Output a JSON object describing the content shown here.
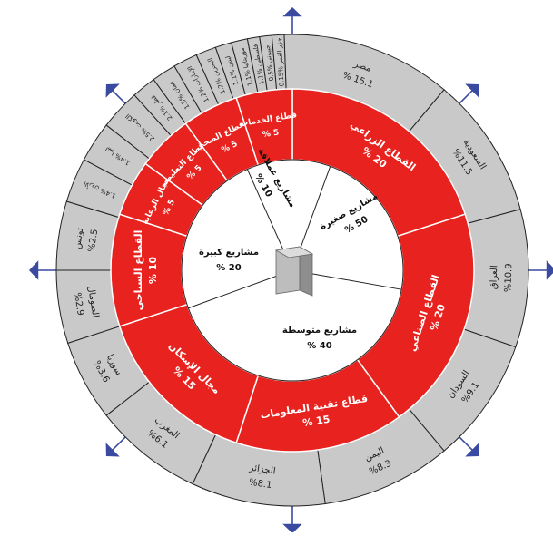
{
  "colors": {
    "outer_fill": "#c9c9c9",
    "sector_fill": "#e8231f",
    "inner_fill": "#ffffff",
    "stroke": "#222222",
    "arrow": "#3a4aa0",
    "box_face": "#bdbdbd",
    "box_side": "#8e8e8e",
    "box_top": "#dcdcdc"
  },
  "center_icon": "document-stack-icon",
  "inner_categories": [
    {
      "label": "مشاريع صغيرة",
      "value": "% 50",
      "share": 50
    },
    {
      "label": "مشاريع متوسطة",
      "value": "% 40",
      "share": 40
    },
    {
      "label": "مشاريع كبيرة",
      "value": "% 20",
      "share": 20
    },
    {
      "label": "مشاريع عملاقة",
      "value": "% 10",
      "share": 10
    }
  ],
  "sectors": [
    {
      "label": "القطاع الزراعي",
      "value": "% 20"
    },
    {
      "label": "القطاع الصناعي",
      "value": "% 20"
    },
    {
      "label": "قطاع تقنية المعلومات",
      "value": "% 15"
    },
    {
      "label": "مجال الإسكان",
      "value": "% 15"
    },
    {
      "label": "القطاع السياحي",
      "value": "% 10"
    },
    {
      "label": "مجال الرعاية",
      "value": "% 5"
    },
    {
      "label": "القطاع التعليمي",
      "value": "% 5"
    },
    {
      "label": "القطاع الصحي",
      "value": "% 5"
    },
    {
      "label": "قطاع الخدمات",
      "value": "% 5"
    }
  ],
  "countries": [
    {
      "label": "مصر",
      "value": "% 15.1"
    },
    {
      "label": "السعودية",
      "value": "%11.5"
    },
    {
      "label": "العراق",
      "value": "%10.9"
    },
    {
      "label": "السودان",
      "value": "%9.1"
    },
    {
      "label": "اليمن",
      "value": "%8.3"
    },
    {
      "label": "الجزائر",
      "value": "%8.1"
    },
    {
      "label": "المغرب",
      "value": "%6.1"
    },
    {
      "label": "سوريا",
      "value": "%3.6"
    },
    {
      "label": "الصومال",
      "value": "%2.9"
    },
    {
      "label": "تونس",
      "value": "%2.5"
    },
    {
      "label": "الأردن",
      "value": "%1.4"
    },
    {
      "label": "ليبيا",
      "value": "%1.4"
    },
    {
      "label": "الكويت",
      "value": "%2.5"
    },
    {
      "label": "قطر",
      "value": "%2.1"
    },
    {
      "label": "عمان",
      "value": "%1.5"
    },
    {
      "label": "الإمارات",
      "value": "%1.2"
    },
    {
      "label": "البحرين",
      "value": "%1.2"
    },
    {
      "label": "لبنان",
      "value": "%1.1"
    },
    {
      "label": "موريتانيا",
      "value": "%1.1"
    },
    {
      "label": "فلسطين",
      "value": "%1.1"
    },
    {
      "label": "جيبوتي",
      "value": "%0.5"
    },
    {
      "label": "جزر القمر",
      "value": "%0.15"
    }
  ]
}
